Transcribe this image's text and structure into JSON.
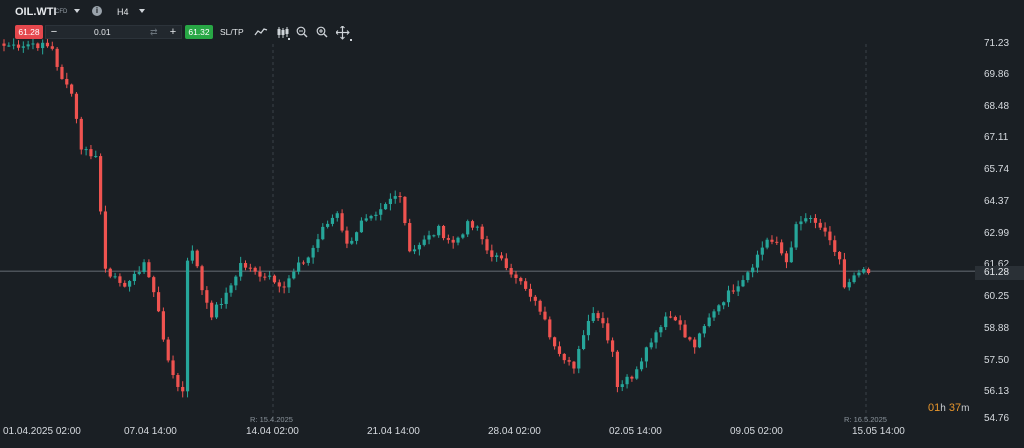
{
  "header": {
    "symbol": "OIL.WTI",
    "instrument_type": "CFD",
    "timeframe": "H4",
    "icons": [
      "chevron-down-icon",
      "info-icon",
      "chevron-down-icon"
    ]
  },
  "trade_bar": {
    "sell_price": "61.28",
    "volume": "0.01",
    "buy_price": "61.32",
    "sltp_label": "SL/TP",
    "minus_label": "−",
    "plus_label": "+",
    "icons": [
      "swap-icon",
      "line-chart-icon",
      "candles-icon",
      "zoom-out-icon",
      "zoom-in-icon",
      "crosshair-icon"
    ]
  },
  "colors": {
    "background": "#1a1f24",
    "up": "#26a69a",
    "down": "#ef5350",
    "sell": "#e5484d",
    "buy": "#28a745",
    "countdown": "#e8962c"
  },
  "y_axis": {
    "ticks": [
      "71.23",
      "69.86",
      "68.48",
      "67.11",
      "65.74",
      "64.37",
      "62.99",
      "61.62",
      "60.25",
      "58.88",
      "57.50",
      "56.13",
      "54.76"
    ],
    "current_price": "61.28"
  },
  "x_axis": {
    "ticks": [
      "01.04.2025 02:00",
      "07.04 14:00",
      "14.04 02:00",
      "21.04 14:00",
      "28.04 02:00",
      "02.05 14:00",
      "09.05 02:00",
      "15.05 14:00"
    ]
  },
  "rollover_labels": [
    "R: 15.4.2025",
    "R: 16.5.2025"
  ],
  "countdown": {
    "hours": "01",
    "h": "h",
    "minutes": "37",
    "m": "m"
  },
  "chart_data": {
    "type": "candlestick",
    "symbol": "OIL.WTI",
    "timeframe": "H4",
    "ylim": [
      54.76,
      71.23
    ],
    "grid": false,
    "x_ticks": [
      "01.04.2025 02:00",
      "07.04 14:00",
      "14.04 02:00",
      "21.04 14:00",
      "28.04 02:00",
      "02.05 14:00",
      "09.05 02:00",
      "15.05 14:00"
    ],
    "close_path": [
      [
        0,
        71.15
      ],
      [
        6,
        71.25
      ],
      [
        10,
        71.05
      ],
      [
        11,
        70.3
      ],
      [
        12,
        69.6
      ],
      [
        14,
        69.2
      ],
      [
        16,
        66.7
      ],
      [
        19,
        66.3
      ],
      [
        21,
        61.5
      ],
      [
        23,
        60.9
      ],
      [
        24,
        60.6
      ],
      [
        27,
        61.0
      ],
      [
        29,
        61.7
      ],
      [
        32,
        59.6
      ],
      [
        34,
        57.2
      ],
      [
        36,
        56.3
      ],
      [
        37,
        56.0
      ],
      [
        38,
        61.8
      ],
      [
        39,
        62.3
      ],
      [
        41,
        60.5
      ],
      [
        43,
        59.4
      ],
      [
        46,
        60.2
      ],
      [
        49,
        61.6
      ],
      [
        52,
        61.2
      ],
      [
        55,
        61.1
      ],
      [
        58,
        60.6
      ],
      [
        61,
        61.5
      ],
      [
        63,
        61.9
      ],
      [
        66,
        63.1
      ],
      [
        69,
        63.9
      ],
      [
        71,
        62.4
      ],
      [
        74,
        63.4
      ],
      [
        77,
        63.6
      ],
      [
        80,
        64.4
      ],
      [
        82,
        64.7
      ],
      [
        84,
        62.2
      ],
      [
        87,
        62.6
      ],
      [
        90,
        63.1
      ],
      [
        93,
        62.5
      ],
      [
        96,
        63.3
      ],
      [
        98,
        63.1
      ],
      [
        100,
        62.2
      ],
      [
        103,
        61.7
      ],
      [
        106,
        61.1
      ],
      [
        109,
        60.1
      ],
      [
        111,
        59.6
      ],
      [
        113,
        58.5
      ],
      [
        115,
        57.8
      ],
      [
        117,
        57.3
      ],
      [
        118,
        56.9
      ],
      [
        120,
        58.6
      ],
      [
        122,
        59.6
      ],
      [
        124,
        59.0
      ],
      [
        126,
        57.8
      ],
      [
        127,
        56.3
      ],
      [
        128,
        56.4
      ],
      [
        130,
        56.7
      ],
      [
        132,
        57.5
      ],
      [
        134,
        58.3
      ],
      [
        137,
        59.3
      ],
      [
        139,
        59.3
      ],
      [
        141,
        58.4
      ],
      [
        143,
        58.0
      ],
      [
        145,
        58.8
      ],
      [
        147,
        59.6
      ],
      [
        150,
        60.3
      ],
      [
        153,
        61.0
      ],
      [
        155,
        61.6
      ],
      [
        158,
        62.7
      ],
      [
        160,
        62.4
      ],
      [
        162,
        61.7
      ],
      [
        164,
        63.2
      ],
      [
        166,
        63.6
      ],
      [
        169,
        63.2
      ],
      [
        171,
        62.5
      ],
      [
        173,
        61.8
      ],
      [
        174,
        60.5
      ],
      [
        175,
        60.7
      ],
      [
        177,
        61.2
      ],
      [
        179,
        61.2
      ]
    ]
  }
}
